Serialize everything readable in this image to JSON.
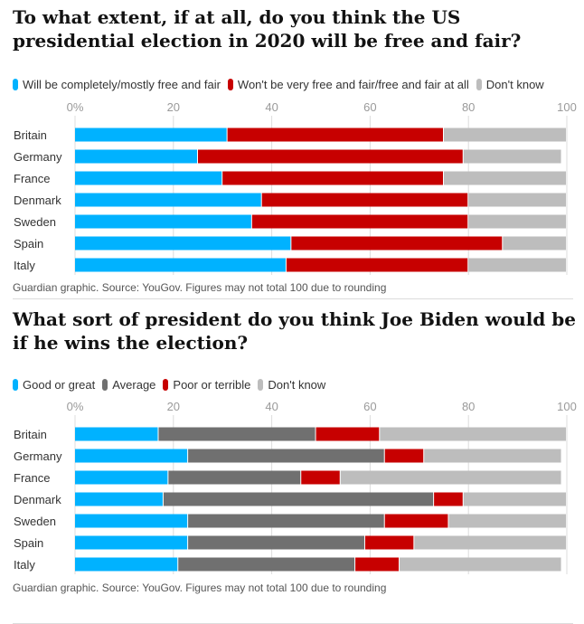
{
  "chart_data": [
    {
      "type": "bar",
      "orientation": "horizontal",
      "stacked": true,
      "title": "To what extent, if at all, do you think the US presidential election in 2020 will be free and fair?",
      "categories": [
        "Britain",
        "Germany",
        "France",
        "Denmark",
        "Sweden",
        "Spain",
        "Italy"
      ],
      "series": [
        {
          "name": "Will be completely/mostly free and fair",
          "color": "#00b2ff",
          "values": [
            31,
            25,
            30,
            38,
            36,
            44,
            43
          ]
        },
        {
          "name": "Won't be very free and fair/free and fair at all",
          "color": "#c70000",
          "values": [
            44,
            54,
            45,
            42,
            44,
            43,
            37
          ]
        },
        {
          "name": "Don't know",
          "color": "#bdbdbd",
          "values": [
            25,
            20,
            25,
            20,
            20,
            13,
            20
          ]
        }
      ],
      "xlim": [
        0,
        100
      ],
      "xticks": [
        "0%",
        "20",
        "40",
        "60",
        "80",
        "100"
      ],
      "grid": true,
      "legend": "top",
      "footer": "Guardian graphic. Source: YouGov. Figures may not total 100 due to rounding"
    },
    {
      "type": "bar",
      "orientation": "horizontal",
      "stacked": true,
      "title": "What sort of president do you think Joe Biden would be if he wins the election?",
      "categories": [
        "Britain",
        "Germany",
        "France",
        "Denmark",
        "Sweden",
        "Spain",
        "Italy"
      ],
      "series": [
        {
          "name": "Good or great",
          "color": "#00b2ff",
          "values": [
            17,
            23,
            19,
            18,
            23,
            23,
            21
          ]
        },
        {
          "name": "Average",
          "color": "#707070",
          "values": [
            32,
            40,
            27,
            55,
            40,
            36,
            36
          ]
        },
        {
          "name": "Poor or terrible",
          "color": "#c70000",
          "values": [
            13,
            8,
            8,
            6,
            13,
            10,
            9
          ]
        },
        {
          "name": "Don't know",
          "color": "#bdbdbd",
          "values": [
            38,
            28,
            45,
            21,
            24,
            31,
            33
          ]
        }
      ],
      "xlim": [
        0,
        100
      ],
      "xticks": [
        "0%",
        "20",
        "40",
        "60",
        "80",
        "100"
      ],
      "grid": true,
      "legend": "top",
      "footer": "Guardian graphic. Source: YouGov. Figures may not total 100 due to rounding"
    }
  ]
}
